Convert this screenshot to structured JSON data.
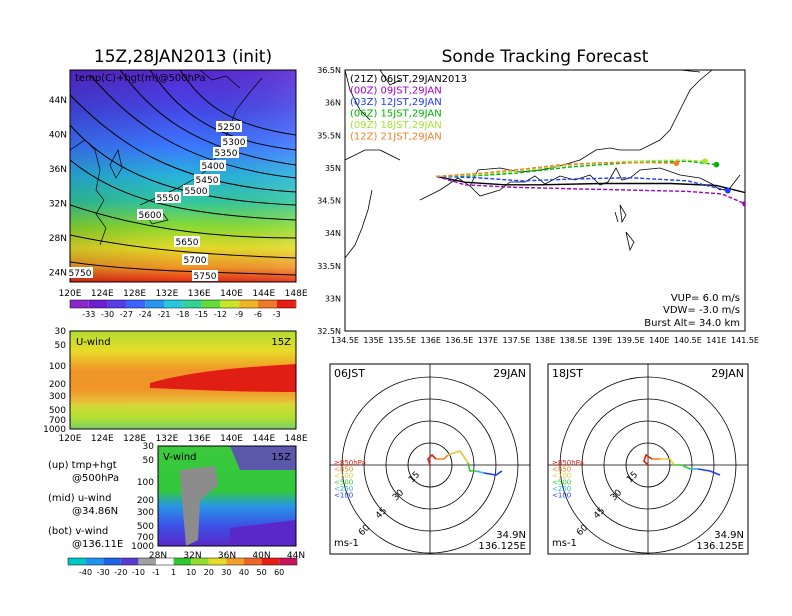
{
  "titles": {
    "left": "15Z,28JAN2013 (init)",
    "right": "Sonde Tracking Forecast"
  },
  "map_panel": {
    "label": "temp(C)+hgt(m)@500hPa",
    "lat_ticks": [
      "44N",
      "40N",
      "36N",
      "32N",
      "28N",
      "24N"
    ],
    "lon_ticks": [
      "120E",
      "124E",
      "128E",
      "132E",
      "136E",
      "140E",
      "144E",
      "148E"
    ],
    "contour_labels": [
      "5250",
      "5300",
      "5350",
      "5400",
      "5450",
      "5500",
      "5550",
      "5600",
      "5650",
      "5700",
      "5750",
      "5750"
    ],
    "colorbar": [
      "-33",
      "-30",
      "-27",
      "-24",
      "-21",
      "-18",
      "-15",
      "-12",
      "-9",
      "-6",
      "-3"
    ]
  },
  "u_panel": {
    "label": "U-wind",
    "time": "15Z",
    "p_ticks": [
      "30",
      "50",
      "100",
      "200",
      "300",
      "500",
      "700",
      "1000"
    ],
    "lon_ticks": [
      "120E",
      "124E",
      "128E",
      "132E",
      "136E",
      "140E",
      "144E",
      "148E"
    ]
  },
  "v_panel": {
    "label": "V-wind",
    "time": "15Z",
    "p_ticks": [
      "30",
      "50",
      "100",
      "200",
      "300",
      "500",
      "700",
      "1000"
    ],
    "lat_ticks": [
      "28N",
      "32N",
      "36N",
      "40N",
      "44N"
    ]
  },
  "side_notes": {
    "up_1": "(up) tmp+hgt",
    "up_2": "@500hPa",
    "mid_1": "(mid) u-wind",
    "mid_2": "@34.86N",
    "bot_1": "(bot) v-wind",
    "bot_2": "@136.11E"
  },
  "wind_colorbar": [
    "-40",
    "-30",
    "-20",
    "-10",
    "-1",
    "1",
    "10",
    "20",
    "30",
    "40",
    "50",
    "60"
  ],
  "track_legend": [
    {
      "text": "(21Z) 06JST,29JAN2013",
      "color": "#000000"
    },
    {
      "text": "(00Z) 09JST,29JAN",
      "color": "#a000c8"
    },
    {
      "text": "(03Z) 12JST,29JAN",
      "color": "#1e3cff"
    },
    {
      "text": "(06Z) 15JST,29JAN",
      "color": "#00b400"
    },
    {
      "text": "(09Z) 18JST,29JAN",
      "color": "#a0e632"
    },
    {
      "text": "(12Z) 21JST,29JAN",
      "color": "#f08228"
    }
  ],
  "track_info": {
    "vup": "VUP= 6.0 m/s",
    "vdw": "VDW= -3.0 m/s",
    "burst": "Burst Alt= 34.0 km"
  },
  "chart_data": {
    "type": "line",
    "title": "Sonde Tracking Forecast",
    "xlim": [
      134.5,
      141.5
    ],
    "ylim": [
      32.5,
      36.5
    ],
    "x_ticks": [
      "134.5E",
      "135E",
      "135.5E",
      "136E",
      "136.5E",
      "137E",
      "137.5E",
      "138E",
      "138.5E",
      "139E",
      "139.5E",
      "140E",
      "140.5E",
      "141E",
      "141.5E"
    ],
    "y_ticks": [
      "36.5N",
      "36N",
      "35.5N",
      "35N",
      "34.5N",
      "34N",
      "33.5N",
      "33N",
      "32.5N"
    ],
    "series": [
      {
        "name": "(21Z) 06JST,29JAN2013",
        "color": "#000000",
        "x": [
          136.1,
          136.6,
          137.3,
          137.9,
          139.0,
          140.2,
          141.0,
          141.6
        ],
        "y": [
          34.87,
          34.78,
          34.74,
          34.74,
          34.76,
          34.76,
          34.73,
          34.6
        ]
      },
      {
        "name": "(00Z) 09JST,29JAN",
        "color": "#a000c8",
        "x": [
          136.1,
          136.6,
          137.5,
          138.5,
          139.5,
          140.5,
          141.1,
          141.5
        ],
        "y": [
          34.87,
          34.74,
          34.7,
          34.68,
          34.66,
          34.64,
          34.6,
          34.45
        ]
      },
      {
        "name": "(03Z) 12JST,29JAN",
        "color": "#1e3cff",
        "x": [
          136.1,
          136.8,
          137.6,
          138.5,
          139.5,
          140.5,
          141.2
        ],
        "y": [
          34.87,
          34.85,
          34.8,
          34.83,
          34.85,
          34.8,
          34.65
        ]
      },
      {
        "name": "(06Z) 15JST,29JAN",
        "color": "#00b400",
        "x": [
          136.1,
          136.8,
          137.5,
          138.5,
          139.5,
          140.5,
          141.0
        ],
        "y": [
          34.87,
          34.88,
          34.92,
          35.02,
          35.08,
          35.1,
          35.05
        ]
      },
      {
        "name": "(09Z) 18JST,29JAN",
        "color": "#a0e632",
        "x": [
          136.1,
          136.9,
          137.6,
          138.5,
          139.5,
          140.4,
          140.8
        ],
        "y": [
          34.87,
          34.9,
          34.96,
          35.05,
          35.1,
          35.12,
          35.1
        ]
      },
      {
        "name": "(12Z) 21JST,29JAN",
        "color": "#f08228",
        "x": [
          136.1,
          136.9,
          137.6,
          138.3,
          139.0,
          139.9,
          140.3
        ],
        "y": [
          34.87,
          34.92,
          34.98,
          35.05,
          35.08,
          35.08,
          35.07
        ]
      }
    ]
  },
  "hodographs": [
    {
      "time": "06JST",
      "date": "29JAN",
      "lat": "34.9N",
      "lon": "136.125E",
      "units": "ms-1",
      "rings": [
        "15",
        "30",
        "45",
        "60"
      ],
      "legend": [
        {
          "t": "≥850hPa",
          "c": "#e11e14"
        },
        {
          "t": "<850",
          "c": "#f08228"
        },
        {
          "t": "<700",
          "c": "#e6c83c"
        },
        {
          "t": "<500",
          "c": "#32c832"
        },
        {
          "t": "<250",
          "c": "#28b4e6"
        },
        {
          "t": "<100",
          "c": "#1e3cff"
        }
      ]
    },
    {
      "time": "18JST",
      "date": "29JAN",
      "lat": "34.9N",
      "lon": "136.125E",
      "units": "ms-1",
      "rings": [
        "15",
        "30",
        "45",
        "60"
      ],
      "legend": [
        {
          "t": "≥850hPa",
          "c": "#e11e14"
        },
        {
          "t": "<850",
          "c": "#f08228"
        },
        {
          "t": "<700",
          "c": "#e6c83c"
        },
        {
          "t": "<500",
          "c": "#32c832"
        },
        {
          "t": "<250",
          "c": "#28b4e6"
        },
        {
          "t": "<100",
          "c": "#1e3cff"
        }
      ]
    }
  ]
}
